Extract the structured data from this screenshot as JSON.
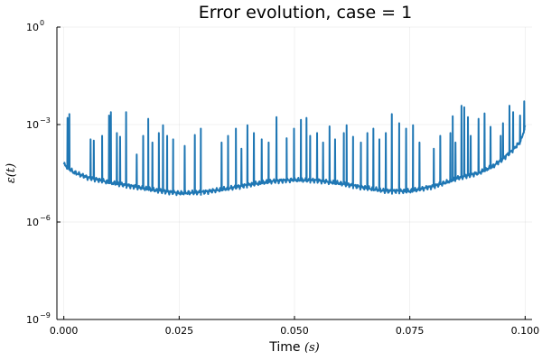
{
  "chart_data": {
    "type": "line",
    "title": "Error evolution, case = 1",
    "xlabel": "Time (s)",
    "xlabel_parts": {
      "text": "Time ",
      "unit": "(s)"
    },
    "ylabel": "ε(t)",
    "x_ticks": [
      0.0,
      0.025,
      0.05,
      0.075,
      0.1
    ],
    "x_tick_labels": [
      "0.000",
      "0.025",
      "0.050",
      "0.075",
      "0.100"
    ],
    "xlim": [
      -0.0015,
      0.1015
    ],
    "y_scale": "log10",
    "ylim": [
      1e-09,
      1
    ],
    "y_ticks": [
      1e-09,
      1e-06,
      0.001,
      1
    ],
    "y_tick_labels": [
      {
        "base": "10",
        "exp": "−9"
      },
      {
        "base": "10",
        "exp": "−6"
      },
      {
        "base": "10",
        "exp": "−3"
      },
      {
        "base": "10",
        "exp": "0"
      }
    ],
    "grid": true,
    "legend": "none",
    "series": [
      {
        "color": "#1f77b4",
        "baseline": {
          "x": [
            0.0,
            0.002,
            0.005,
            0.01,
            0.015,
            0.02,
            0.025,
            0.03,
            0.035,
            0.04,
            0.045,
            0.05,
            0.055,
            0.06,
            0.065,
            0.07,
            0.075,
            0.08,
            0.083,
            0.086,
            0.09,
            0.093,
            0.095,
            0.097,
            0.099,
            0.1
          ],
          "y": [
            6e-05,
            3.5e-05,
            2.4e-05,
            1.65e-05,
            1.25e-05,
            9.5e-06,
            7.8e-06,
            8.3e-06,
            1.05e-05,
            1.4e-05,
            1.8e-05,
            2e-05,
            1.9e-05,
            1.55e-05,
            1.15e-05,
            9e-06,
            9e-06,
            1.25e-05,
            1.7e-05,
            2.4e-05,
            3.3e-05,
            5.2e-05,
            8.5e-05,
            0.00015,
            0.0003,
            0.00085
          ]
        },
        "spikes": {
          "x": [
            0.0008,
            0.0012,
            0.0058,
            0.0065,
            0.0083,
            0.0098,
            0.0102,
            0.0115,
            0.0122,
            0.0135,
            0.0158,
            0.0172,
            0.0183,
            0.0192,
            0.0206,
            0.0215,
            0.0224,
            0.0237,
            0.0262,
            0.0284,
            0.0297,
            0.0342,
            0.0356,
            0.0373,
            0.0385,
            0.0398,
            0.0412,
            0.0429,
            0.0444,
            0.0461,
            0.0483,
            0.0499,
            0.0514,
            0.0526,
            0.0534,
            0.0549,
            0.0562,
            0.0576,
            0.0588,
            0.0607,
            0.0613,
            0.0627,
            0.0644,
            0.0658,
            0.0671,
            0.0684,
            0.0698,
            0.0711,
            0.0727,
            0.0742,
            0.0757,
            0.0771,
            0.0802,
            0.0816,
            0.0838,
            0.0843,
            0.0849,
            0.0862,
            0.0868,
            0.0876,
            0.0882,
            0.0899,
            0.0912,
            0.0925,
            0.0947,
            0.0952,
            0.0966,
            0.0974,
            0.0989,
            0.0998
          ],
          "y": [
            0.0016,
            0.0021,
            0.00035,
            0.00032,
            0.00045,
            0.0019,
            0.0024,
            0.00055,
            0.00042,
            0.0024,
            0.00012,
            0.00045,
            0.0015,
            0.00028,
            0.00055,
            0.00095,
            0.00045,
            0.00035,
            0.00022,
            0.00048,
            0.00075,
            0.00028,
            0.00045,
            0.00075,
            0.00018,
            0.00095,
            0.00055,
            0.00035,
            0.00028,
            0.0017,
            0.00038,
            0.00075,
            0.0014,
            0.0016,
            0.00045,
            0.00055,
            0.00028,
            0.00088,
            0.00035,
            0.00055,
            0.00095,
            0.00042,
            0.00028,
            0.00055,
            0.00075,
            0.00035,
            0.00055,
            0.0021,
            0.0011,
            0.00075,
            0.00095,
            0.00028,
            0.00018,
            0.00045,
            0.00055,
            0.0018,
            0.00028,
            0.0038,
            0.0034,
            0.0017,
            0.00045,
            0.0015,
            0.0022,
            0.00085,
            0.00045,
            0.0011,
            0.0038,
            0.0024,
            0.0019,
            0.0052
          ]
        }
      }
    ]
  }
}
